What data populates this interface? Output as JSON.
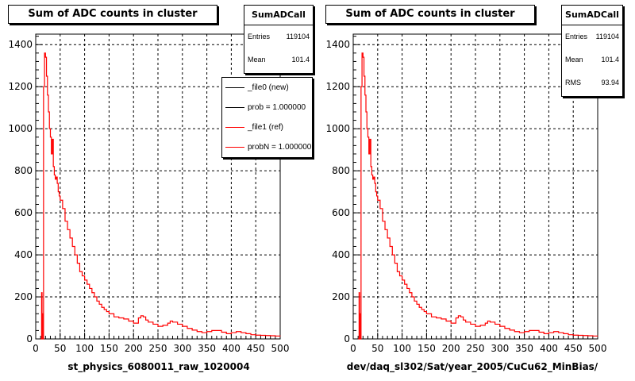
{
  "colors": {
    "new": "#000000",
    "ref": "#ff0000",
    "grid": "#000000",
    "background": "#ffffff"
  },
  "panels": [
    {
      "title": "Sum of ADC counts in cluster",
      "stats": {
        "name": "SumADCall",
        "entries_label": "Entries",
        "entries": "119104",
        "mean_label": "Mean",
        "mean": "101.4"
      },
      "legend": [
        {
          "label": "_file0 (new)",
          "color": "#000000"
        },
        {
          "label": "prob = 1.000000",
          "color": "#000000"
        },
        {
          "label": "_file1 (ref)",
          "color": "#ff0000"
        },
        {
          "label": "probN = 1.000000",
          "color": "#ff0000"
        }
      ],
      "xlabel": "st_physics_6080011_raw_1020004"
    },
    {
      "title": "Sum of ADC counts in cluster",
      "stats": {
        "name": "SumADCall",
        "entries_label": "Entries",
        "entries": "119104",
        "mean_label": "Mean",
        "mean": "101.4",
        "rms_label": "RMS",
        "rms": "93.94"
      },
      "xlabel": "dev/daq_sl302/Sat/year_2005/CuCu62_MinBias/"
    }
  ],
  "chart_data": [
    {
      "type": "line",
      "title": "Sum of ADC counts in cluster",
      "histogram": "SumADCall",
      "xlim": [
        0,
        500
      ],
      "ylim": [
        0,
        1450
      ],
      "x_ticks": [
        0,
        50,
        100,
        150,
        200,
        250,
        300,
        350,
        400,
        450,
        500
      ],
      "y_ticks": [
        0,
        200,
        400,
        600,
        800,
        1000,
        1200,
        1400
      ],
      "grid": true,
      "legend_position": "top-right",
      "series": [
        {
          "name": "_file1 (ref)",
          "color": "#ff0000",
          "x": [
            10,
            12,
            13,
            14,
            16,
            18,
            20,
            22,
            24,
            26,
            28,
            30,
            32,
            34,
            36,
            38,
            40,
            42,
            44,
            46,
            48,
            50,
            55,
            60,
            65,
            70,
            75,
            80,
            85,
            90,
            95,
            100,
            105,
            110,
            115,
            120,
            125,
            130,
            135,
            140,
            145,
            150,
            160,
            170,
            180,
            190,
            200,
            210,
            215,
            220,
            225,
            230,
            240,
            250,
            260,
            270,
            275,
            280,
            290,
            300,
            310,
            320,
            330,
            340,
            350,
            360,
            370,
            380,
            390,
            400,
            410,
            420,
            430,
            440,
            450,
            460,
            470,
            480,
            490,
            500
          ],
          "y": [
            0,
            220,
            120,
            0,
            1200,
            1360,
            1340,
            1250,
            1160,
            1080,
            1000,
            960,
            880,
            950,
            820,
            780,
            760,
            770,
            740,
            700,
            680,
            660,
            620,
            560,
            520,
            480,
            440,
            400,
            360,
            320,
            300,
            280,
            260,
            240,
            220,
            200,
            180,
            165,
            150,
            140,
            130,
            120,
            105,
            100,
            95,
            85,
            75,
            100,
            110,
            105,
            90,
            80,
            70,
            60,
            65,
            75,
            85,
            80,
            70,
            60,
            50,
            42,
            35,
            30,
            35,
            40,
            40,
            32,
            25,
            30,
            35,
            30,
            25,
            20,
            18,
            17,
            16,
            15,
            14,
            13
          ]
        }
      ]
    },
    {
      "type": "line",
      "title": "Sum of ADC counts in cluster",
      "histogram": "SumADCall",
      "xlim": [
        0,
        500
      ],
      "ylim": [
        0,
        1450
      ],
      "x_ticks": [
        0,
        50,
        100,
        150,
        200,
        250,
        300,
        350,
        400,
        450,
        500
      ],
      "y_ticks": [
        0,
        200,
        400,
        600,
        800,
        1000,
        1200,
        1400
      ],
      "grid": true,
      "series": [
        {
          "color": "#ff0000",
          "x": [
            10,
            12,
            13,
            14,
            16,
            18,
            20,
            22,
            24,
            26,
            28,
            30,
            32,
            34,
            36,
            38,
            40,
            42,
            44,
            46,
            48,
            50,
            55,
            60,
            65,
            70,
            75,
            80,
            85,
            90,
            95,
            100,
            105,
            110,
            115,
            120,
            125,
            130,
            135,
            140,
            145,
            150,
            160,
            170,
            180,
            190,
            200,
            210,
            215,
            220,
            225,
            230,
            240,
            250,
            260,
            270,
            275,
            280,
            290,
            300,
            310,
            320,
            330,
            340,
            350,
            360,
            370,
            380,
            390,
            400,
            410,
            420,
            430,
            440,
            450,
            460,
            470,
            480,
            490,
            500
          ],
          "y": [
            0,
            220,
            120,
            0,
            1200,
            1360,
            1340,
            1250,
            1160,
            1080,
            1000,
            960,
            880,
            950,
            820,
            780,
            760,
            770,
            740,
            700,
            680,
            660,
            620,
            560,
            520,
            480,
            440,
            400,
            360,
            320,
            300,
            280,
            260,
            240,
            220,
            200,
            180,
            165,
            150,
            140,
            130,
            120,
            105,
            100,
            95,
            85,
            75,
            100,
            110,
            105,
            90,
            80,
            70,
            60,
            65,
            75,
            85,
            80,
            70,
            60,
            50,
            42,
            35,
            30,
            35,
            40,
            40,
            32,
            25,
            30,
            35,
            30,
            25,
            20,
            18,
            17,
            16,
            15,
            14,
            13
          ]
        }
      ]
    }
  ]
}
